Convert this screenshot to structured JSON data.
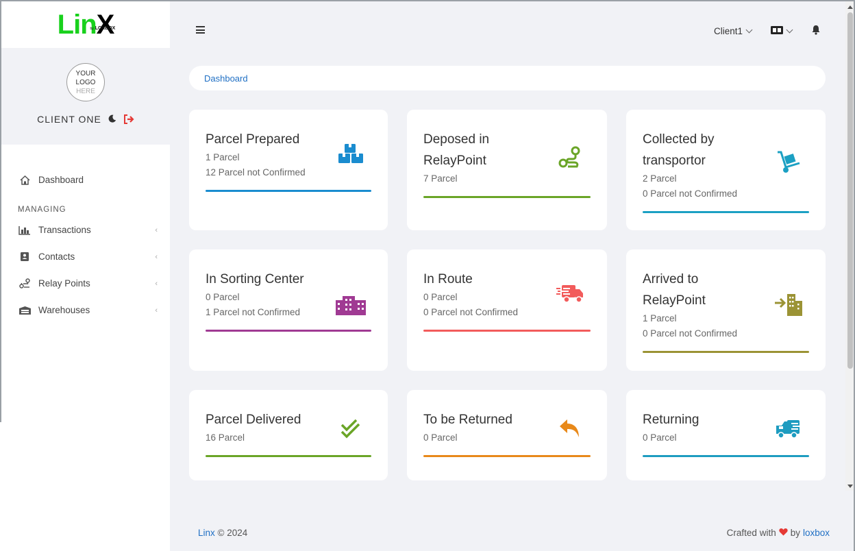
{
  "brand": {
    "name_part1": "Lin",
    "name_part2": "X",
    "sub_by": "by",
    "sub_name": "LOXBOX"
  },
  "profile": {
    "logo_line1": "YOUR",
    "logo_line2": "LOGO",
    "logo_line3": "HERE",
    "client_name": "CLIENT ONE"
  },
  "sidebar": {
    "dashboard": "Dashboard",
    "section_label": "MANAGING",
    "items": [
      {
        "label": "Transactions",
        "icon": "chart-icon"
      },
      {
        "label": "Contacts",
        "icon": "contacts-icon"
      },
      {
        "label": "Relay Points",
        "icon": "route-icon"
      },
      {
        "label": "Warehouses",
        "icon": "warehouse-icon"
      }
    ]
  },
  "topbar": {
    "client": "Client1"
  },
  "breadcrumb": {
    "current": "Dashboard"
  },
  "colors": {
    "blue": "#1a8ccf",
    "green": "#6aa527",
    "teal": "#1ba0c3",
    "purple": "#a03a93",
    "red": "#f25b5b",
    "olive": "#9b9335",
    "orange": "#e8891a",
    "cyan": "#1e9cc0"
  },
  "cards": [
    {
      "title": "Parcel Prepared",
      "lines": [
        "1 Parcel",
        "12 Parcel not Confirmed"
      ]
    },
    {
      "title": "Deposed in RelayPoint",
      "lines": [
        "7 Parcel"
      ]
    },
    {
      "title": "Collected by transportor",
      "lines": [
        "2 Parcel",
        "0 Parcel not Confirmed"
      ]
    },
    {
      "title": "In Sorting Center",
      "lines": [
        "0 Parcel",
        "1 Parcel not Confirmed"
      ]
    },
    {
      "title": "In Route",
      "lines": [
        "0 Parcel",
        "0 Parcel not Confirmed"
      ]
    },
    {
      "title": "Arrived to RelayPoint",
      "lines": [
        "1 Parcel",
        "0 Parcel not Confirmed"
      ]
    },
    {
      "title": "Parcel Delivered",
      "lines": [
        "16 Parcel"
      ]
    },
    {
      "title": "To be Returned",
      "lines": [
        "0 Parcel"
      ]
    },
    {
      "title": "Returning",
      "lines": [
        "0 Parcel"
      ]
    }
  ],
  "footer": {
    "brand": "Linx",
    "year": " © 2024",
    "crafted": "Crafted with",
    "by": "by",
    "company": "loxbox"
  }
}
